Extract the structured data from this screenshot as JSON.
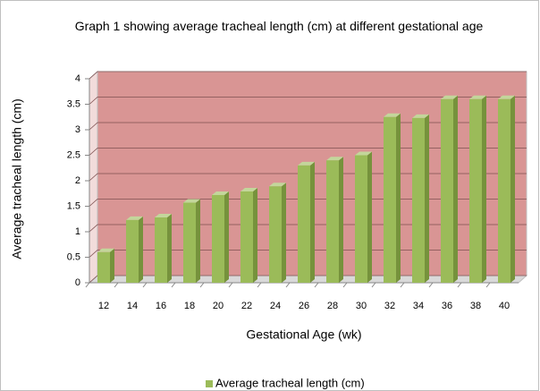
{
  "chart_data": {
    "type": "bar",
    "title": "Graph 1 showing average tracheal length (cm) at different gestational age",
    "x_label": "Gestational Age (wk)",
    "y_label": "Average tracheal  length (cm)",
    "categories": [
      "12",
      "14",
      "16",
      "18",
      "20",
      "22",
      "24",
      "26",
      "28",
      "30",
      "32",
      "34",
      "36",
      "38",
      "40"
    ],
    "series": [
      {
        "name": "Average tracheal length (cm)",
        "color": "#9bbb59",
        "values": [
          0.6,
          1.23,
          1.28,
          1.57,
          1.72,
          1.79,
          1.89,
          2.3,
          2.4,
          2.5,
          3.25,
          3.23,
          3.6,
          3.6,
          3.6
        ]
      }
    ],
    "ylim": [
      0,
      4
    ],
    "yticks": [
      0,
      0.5,
      1,
      1.5,
      2,
      2.5,
      3,
      3.5,
      4
    ],
    "grid": true,
    "wall_color": "#d99594",
    "legend": "bottom"
  }
}
